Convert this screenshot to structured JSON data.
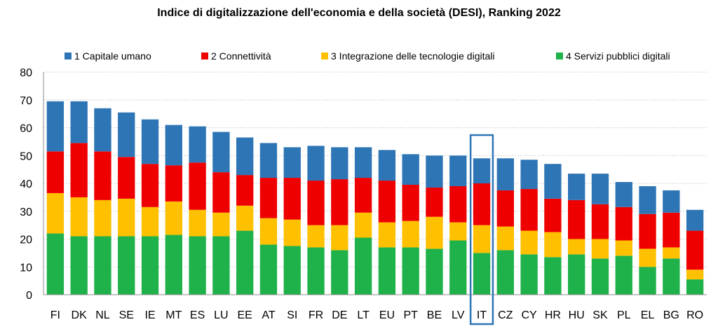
{
  "chart_data": {
    "type": "bar",
    "stacked": true,
    "title": "Indice di digitalizzazione dell'economia e della società (DESI), Ranking 2022",
    "xlabel": "",
    "ylabel": "",
    "ylim": [
      0,
      80
    ],
    "yticks": [
      0,
      10,
      20,
      30,
      40,
      50,
      60,
      70,
      80
    ],
    "grid": true,
    "legend_position": "top",
    "highlight_category": "IT",
    "highlight_color": "#2e75b6",
    "categories": [
      "FI",
      "DK",
      "NL",
      "SE",
      "IE",
      "MT",
      "ES",
      "LU",
      "EE",
      "AT",
      "SI",
      "FR",
      "DE",
      "LT",
      "EU",
      "PT",
      "BE",
      "LV",
      "IT",
      "CZ",
      "CY",
      "HR",
      "HU",
      "SK",
      "PL",
      "EL",
      "BG",
      "RO"
    ],
    "series": [
      {
        "name": "4 Servizi pubblici digitali",
        "color": "#1fb14a",
        "values": [
          22,
          21,
          21,
          21,
          21,
          21.5,
          21,
          21,
          23,
          18,
          17.5,
          17,
          16,
          20.5,
          17,
          17,
          16.5,
          19.5,
          15,
          16,
          14.5,
          13.5,
          14.5,
          13,
          14,
          10,
          13,
          5.5
        ]
      },
      {
        "name": "3 Integrazione delle tecnologie digitali",
        "color": "#ffc000",
        "values": [
          14.5,
          14,
          13,
          13.5,
          10.5,
          12,
          9.5,
          8.5,
          9,
          9.5,
          9.5,
          8,
          9,
          9,
          9,
          9.5,
          11.5,
          6.5,
          10,
          8.5,
          8.5,
          9,
          5.5,
          7,
          5.5,
          6.5,
          4,
          3.5
        ]
      },
      {
        "name": "2 Connettività",
        "color": "#ee0000",
        "values": [
          15,
          19.5,
          17.5,
          15,
          15.5,
          13,
          17,
          14.5,
          11,
          14.5,
          15,
          16,
          16.5,
          12.5,
          15,
          13,
          10.5,
          13,
          15,
          13,
          15,
          12,
          14,
          12.5,
          12,
          12.5,
          12.5,
          14
        ]
      },
      {
        "name": "1 Capitale umano",
        "color": "#2e75b6",
        "values": [
          18,
          15,
          15.5,
          16,
          16,
          14.5,
          13,
          14.5,
          13.5,
          12.5,
          11,
          12.5,
          11.5,
          11,
          11,
          11,
          11.5,
          11,
          9,
          11.5,
          10.5,
          12.5,
          9.5,
          11,
          9,
          10,
          8,
          7.5
        ]
      }
    ]
  }
}
